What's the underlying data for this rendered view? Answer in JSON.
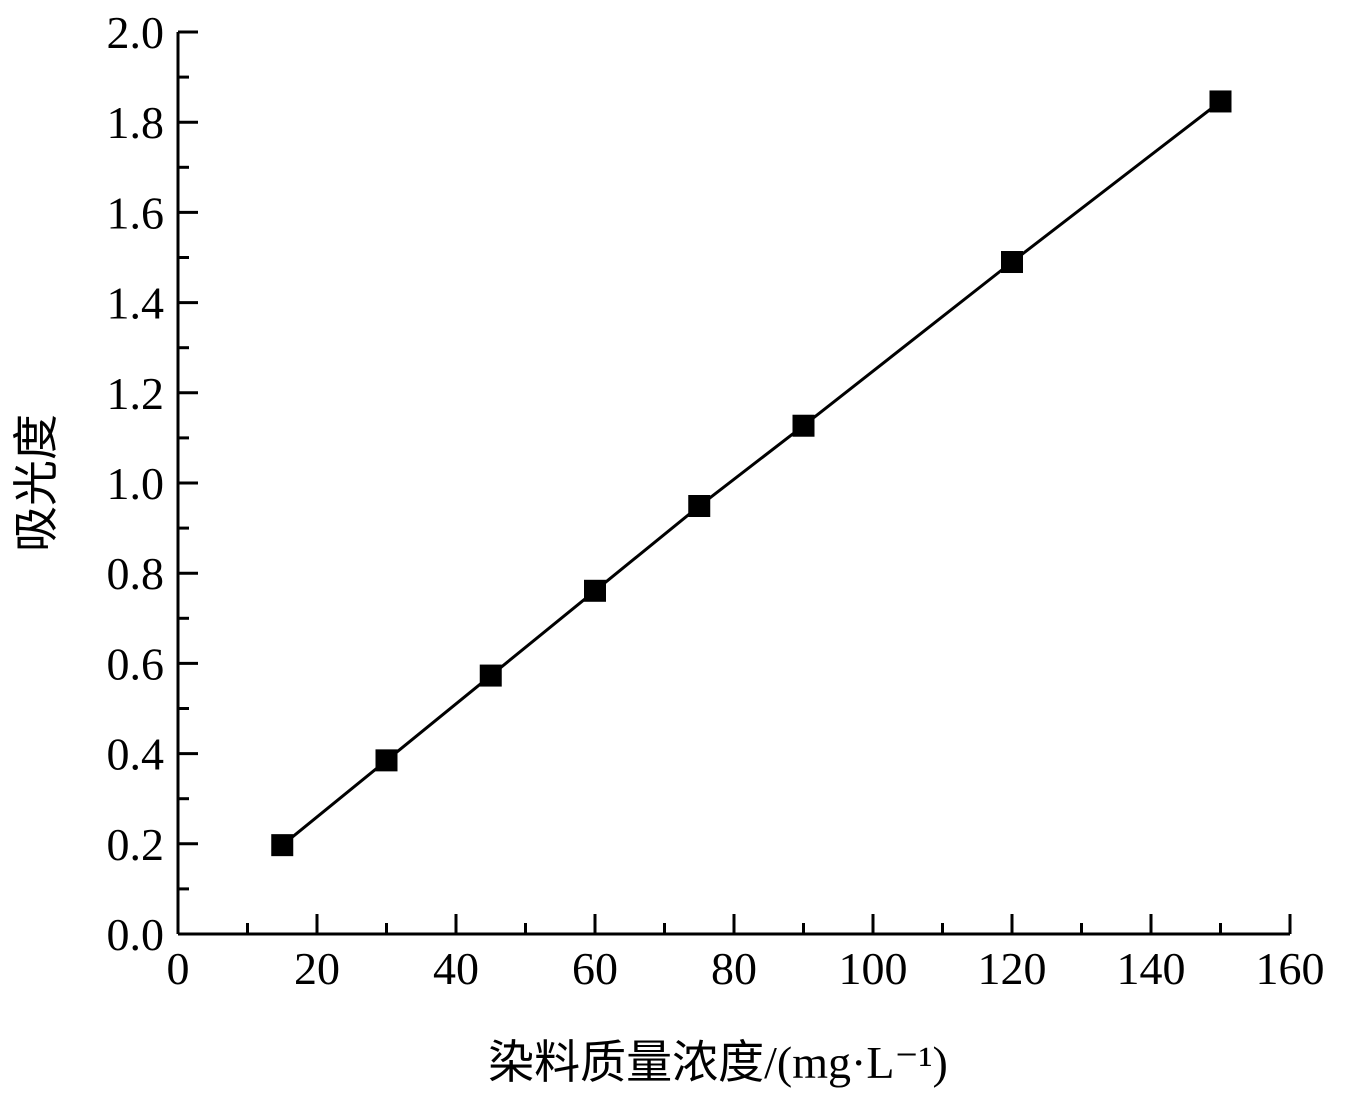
{
  "chart_data": {
    "type": "line",
    "title": "",
    "xlabel": "染料质量浓度/(mg·L⁻¹)",
    "ylabel": "吸光度",
    "xlim": [
      0,
      160
    ],
    "ylim": [
      0.0,
      2.0
    ],
    "x_ticks": [
      "0",
      "20",
      "40",
      "60",
      "80",
      "100",
      "120",
      "140",
      "160"
    ],
    "y_ticks": [
      "0.0",
      "0.2",
      "0.4",
      "0.6",
      "0.8",
      "1.0",
      "1.2",
      "1.4",
      "1.6",
      "1.8",
      "2.0"
    ],
    "grid": false,
    "legend": "none",
    "series": [
      {
        "marker": "square",
        "color": "#000000",
        "x": [
          15,
          30,
          45,
          60,
          75,
          90,
          120,
          150
        ],
        "y": [
          0.197,
          0.385,
          0.573,
          0.761,
          0.949,
          1.127,
          1.49,
          1.846
        ]
      }
    ]
  }
}
